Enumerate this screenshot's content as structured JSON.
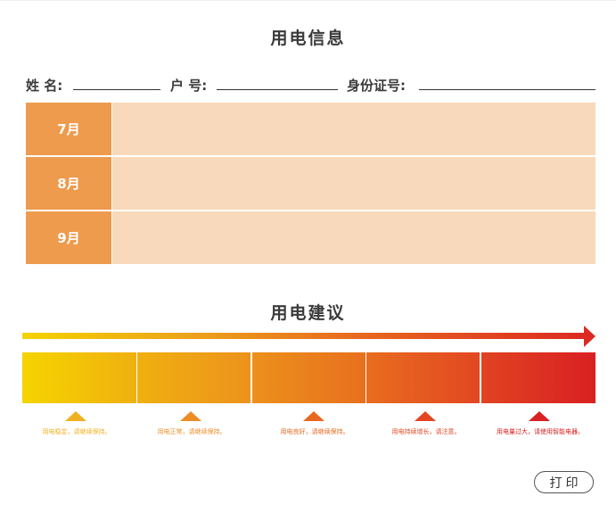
{
  "header": {
    "title": "用电信息"
  },
  "form": {
    "name_label": "姓 名:",
    "account_label": "户 号:",
    "id_label": "身份证号:"
  },
  "table": {
    "rows": [
      {
        "month": "7月",
        "value": ""
      },
      {
        "month": "8月",
        "value": ""
      },
      {
        "month": "9月",
        "value": ""
      }
    ]
  },
  "advice": {
    "title": "用电建议",
    "levels": [
      {
        "text": "用电稳定，请继续保持。",
        "color": "#efb020"
      },
      {
        "text": "用电正常，请继续保持。",
        "color": "#ec8c25"
      },
      {
        "text": "用电良好，请继续保持。",
        "color": "#e8671e"
      },
      {
        "text": "用电持续增长，请注意。",
        "color": "#e24722"
      },
      {
        "text": "用电量过大，请使用智能电器。",
        "color": "#d92022"
      }
    ]
  },
  "actions": {
    "print_label": "打印"
  },
  "colors": {
    "month_cell": "#ee9b4e",
    "value_cell": "#f8d9bb",
    "gradient_start": "#f5d200",
    "gradient_end": "#dc2a22"
  }
}
